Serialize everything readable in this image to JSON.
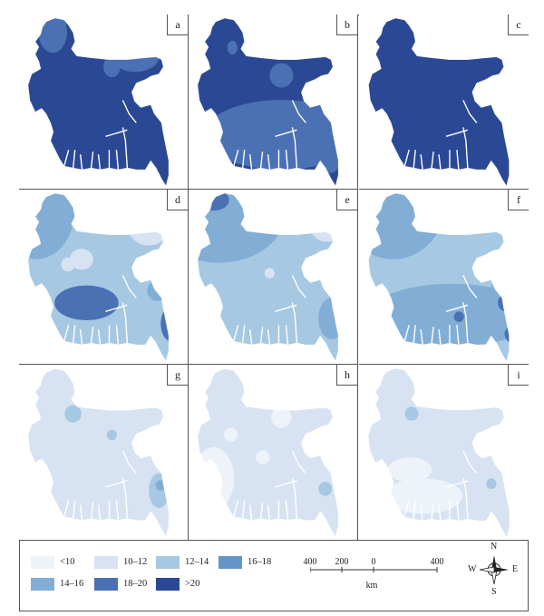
{
  "panels": [
    {
      "label": "a",
      "base": "#2b4895",
      "blobs": [
        [
          0.2,
          0.1,
          0.085,
          0.12,
          "#4a71b3"
        ],
        [
          0.55,
          0.3,
          0.05,
          0.06,
          "#4a71b3"
        ],
        [
          0.69,
          0.24,
          0.14,
          0.09,
          "#4a71b3"
        ]
      ]
    },
    {
      "label": "b",
      "base": "#2b4895",
      "blobs": [
        [
          0.26,
          0.19,
          0.03,
          0.04,
          "#4a71b3"
        ],
        [
          0.55,
          0.35,
          0.07,
          0.07,
          "#4a71b3"
        ],
        [
          0.55,
          0.69,
          0.46,
          0.2,
          "#4a71b3"
        ],
        [
          0.76,
          0.58,
          0.04,
          0.04,
          "#4a71b3"
        ],
        [
          0.91,
          0.72,
          0.08,
          0.06,
          "#4a71b3"
        ],
        [
          0.84,
          0.86,
          0.05,
          0.05,
          "#4a71b3"
        ]
      ]
    },
    {
      "label": "c",
      "base": "#2b4895",
      "blobs": []
    },
    {
      "label": "d",
      "base": "#a6c8e2",
      "blobs": [
        [
          0.1,
          0.12,
          0.23,
          0.28,
          "#82aed6"
        ],
        [
          0.77,
          0.2,
          0.13,
          0.12,
          "#d7e3f2"
        ],
        [
          0.37,
          0.4,
          0.07,
          0.06,
          "#d7e3f2"
        ],
        [
          0.29,
          0.43,
          0.04,
          0.04,
          "#d7e3f2"
        ],
        [
          0.4,
          0.65,
          0.19,
          0.1,
          "#4a71b3"
        ],
        [
          0.9,
          0.77,
          0.06,
          0.1,
          "#4a71b3"
        ],
        [
          0.82,
          0.58,
          0.06,
          0.06,
          "#82aed6"
        ]
      ]
    },
    {
      "label": "e",
      "base": "#a6c8e2",
      "blobs": [
        [
          0.18,
          0.12,
          0.4,
          0.3,
          "#82aed6"
        ],
        [
          0.15,
          0.06,
          0.09,
          0.06,
          "#4a71b3"
        ],
        [
          0.82,
          0.18,
          0.11,
          0.12,
          "#d7e3f2"
        ],
        [
          0.48,
          0.48,
          0.03,
          0.03,
          "#d7e3f2"
        ],
        [
          0.85,
          0.74,
          0.08,
          0.12,
          "#82aed6"
        ],
        [
          0.95,
          0.85,
          0.05,
          0.06,
          "#4a71b3"
        ]
      ]
    },
    {
      "label": "f",
      "base": "#a6c8e2",
      "blobs": [
        [
          0.2,
          0.1,
          0.3,
          0.3,
          "#82aed6"
        ],
        [
          0.84,
          0.15,
          0.09,
          0.08,
          "#d7e3f2"
        ],
        [
          0.55,
          0.72,
          0.5,
          0.18,
          "#82aed6"
        ],
        [
          0.86,
          0.58,
          0.08,
          0.1,
          "#82aed6"
        ],
        [
          0.87,
          0.65,
          0.05,
          0.05,
          "#4a71b3"
        ],
        [
          0.59,
          0.73,
          0.03,
          0.03,
          "#4a71b3"
        ],
        [
          0.91,
          0.83,
          0.05,
          0.05,
          "#4a71b3"
        ],
        [
          0.09,
          0.28,
          0.03,
          0.03,
          "#4a71b3"
        ]
      ]
    },
    {
      "label": "g",
      "base": "#d7e3f2",
      "blobs": [
        [
          0.32,
          0.28,
          0.05,
          0.05,
          "#a6c8e2"
        ],
        [
          0.55,
          0.4,
          0.03,
          0.03,
          "#a6c8e2"
        ],
        [
          0.83,
          0.72,
          0.06,
          0.1,
          "#a6c8e2"
        ],
        [
          0.84,
          0.69,
          0.03,
          0.03,
          "#82aed6"
        ],
        [
          0.65,
          0.58,
          0.05,
          0.05,
          "#d7e3f2"
        ]
      ]
    },
    {
      "label": "h",
      "base": "#d7e3f2",
      "blobs": [
        [
          0.55,
          0.3,
          0.06,
          0.06,
          "#eef3fa"
        ],
        [
          0.25,
          0.4,
          0.04,
          0.04,
          "#eef3fa"
        ],
        [
          0.44,
          0.53,
          0.04,
          0.04,
          "#eef3fa"
        ],
        [
          0.15,
          0.65,
          0.12,
          0.18,
          "#eef3fa"
        ],
        [
          0.81,
          0.71,
          0.04,
          0.04,
          "#a6c8e2"
        ]
      ]
    },
    {
      "label": "i",
      "base": "#d7e3f2",
      "blobs": [
        [
          0.31,
          0.28,
          0.04,
          0.04,
          "#a6c8e2"
        ],
        [
          0.3,
          0.6,
          0.13,
          0.07,
          "#eef3fa"
        ],
        [
          0.38,
          0.75,
          0.23,
          0.1,
          "#eef3fa"
        ],
        [
          0.78,
          0.68,
          0.03,
          0.03,
          "#a6c8e2"
        ]
      ]
    }
  ],
  "legend": {
    "items": [
      {
        "label": "<10",
        "color": "#eef3fa"
      },
      {
        "label": "10–12",
        "color": "#d7e3f2"
      },
      {
        "label": "12–14",
        "color": "#a6c8e2"
      },
      {
        "label": "16–18",
        "color": "#6695c8"
      },
      {
        "label": "14–16",
        "color": "#82aed6"
      },
      {
        "label": "18–20",
        "color": "#4a71b3"
      },
      {
        "label": ">20",
        "color": "#2b4895"
      }
    ]
  },
  "scalebar": {
    "ticks": [
      "400",
      "200",
      "0",
      "400"
    ],
    "unit": "km"
  },
  "compass": {
    "n": "N",
    "s": "S",
    "e": "E",
    "w": "W"
  }
}
